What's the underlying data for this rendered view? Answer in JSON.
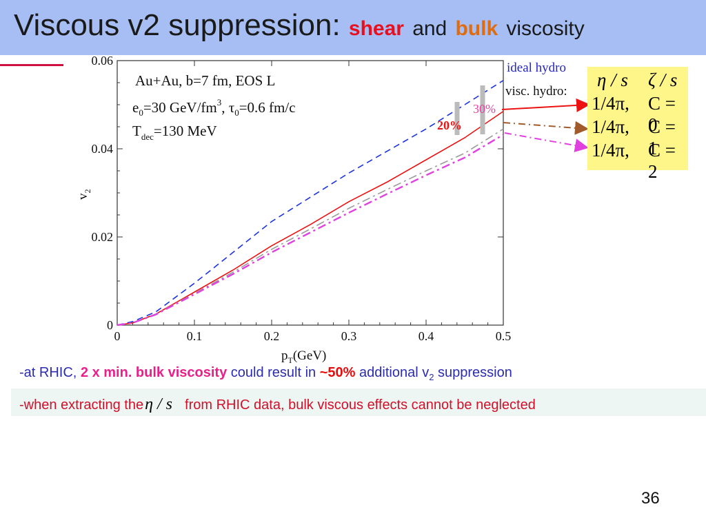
{
  "header": {
    "title_main": "Viscous v2 suppression: ",
    "title_shear": "shear",
    "title_and": "and",
    "title_bulk": "bulk",
    "title_viscosity": "viscosity"
  },
  "chart_data": {
    "type": "line",
    "xlabel": "p_T(GeV)",
    "ylabel": "v_2",
    "xlim": [
      0,
      0.5
    ],
    "ylim": [
      0,
      0.06
    ],
    "xticks": [
      "0",
      "0.1",
      "0.2",
      "0.3",
      "0.4",
      "0.5"
    ],
    "yticks": [
      "0",
      "0.02",
      "0.04",
      "0.06"
    ],
    "annotation_lines": [
      "Au+Au, b=7 fm, EOS L",
      "e0=30 GeV/fm3, τ0=0.6 fm/c",
      "Tdec=130 MeV"
    ],
    "percent_labels": [
      "30%",
      "20%"
    ],
    "series": [
      {
        "name": "ideal hydro",
        "color": "#1a32e0",
        "dash": "dashed",
        "x": [
          0,
          0.02,
          0.05,
          0.1,
          0.15,
          0.2,
          0.25,
          0.3,
          0.35,
          0.4,
          0.45,
          0.5
        ],
        "y": [
          0,
          0.0008,
          0.003,
          0.0095,
          0.0165,
          0.0235,
          0.029,
          0.0345,
          0.0395,
          0.0445,
          0.05,
          0.0555
        ]
      },
      {
        "color": "#ee1111",
        "dash": "solid",
        "x": [
          0,
          0.02,
          0.05,
          0.1,
          0.15,
          0.2,
          0.25,
          0.3,
          0.35,
          0.4,
          0.45,
          0.5
        ],
        "y": [
          0,
          0.0005,
          0.0025,
          0.0075,
          0.0125,
          0.018,
          0.0228,
          0.028,
          0.0325,
          0.0375,
          0.0425,
          0.0485
        ]
      },
      {
        "color": "#9a9a9a",
        "dash": "dashdot",
        "x": [
          0,
          0.02,
          0.05,
          0.1,
          0.15,
          0.2,
          0.25,
          0.3,
          0.35,
          0.4,
          0.45,
          0.5
        ],
        "y": [
          0,
          0.0005,
          0.0025,
          0.0072,
          0.012,
          0.0172,
          0.0218,
          0.0265,
          0.0308,
          0.035,
          0.039,
          0.0445
        ]
      },
      {
        "color": "#e040e0",
        "dash": "dashdot",
        "x": [
          0,
          0.02,
          0.05,
          0.1,
          0.15,
          0.2,
          0.25,
          0.3,
          0.35,
          0.4,
          0.45,
          0.5
        ],
        "y": [
          0,
          0.0005,
          0.0024,
          0.007,
          0.0116,
          0.0165,
          0.021,
          0.0255,
          0.0298,
          0.034,
          0.038,
          0.0432
        ]
      }
    ]
  },
  "legend": {
    "ideal": "ideal hydro",
    "visc": "visc. hydro:"
  },
  "table": {
    "header_eta": "η / s",
    "header_zeta": "ζ / s",
    "rows": [
      {
        "eta": "1/4π,",
        "zeta": "C = 0"
      },
      {
        "eta": "1/4π,",
        "zeta": "C = 1"
      },
      {
        "eta": "1/4π,",
        "zeta": "C = 2"
      }
    ]
  },
  "notes": {
    "line1_a": "-at RHIC, ",
    "line1_b": "2 x min. bulk viscosity",
    "line1_c": " could result in ",
    "line1_d": "~50%",
    "line1_e": " additional v",
    "line1_sub": "2",
    "line1_f": " suppression",
    "line2_a": "-when extracting the",
    "line2_eta": "η / s",
    "line2_b": "from RHIC data, bulk viscous effects cannot be neglected"
  },
  "footer": {
    "page_number": "36"
  },
  "colors": {
    "title_bg": "#a6bef3",
    "ideal": "#1a32e0",
    "shear": "#ee1111",
    "bulk1": "#9a9a9a",
    "bulk2": "#e040e0",
    "highlight_box": "#fff68a"
  }
}
